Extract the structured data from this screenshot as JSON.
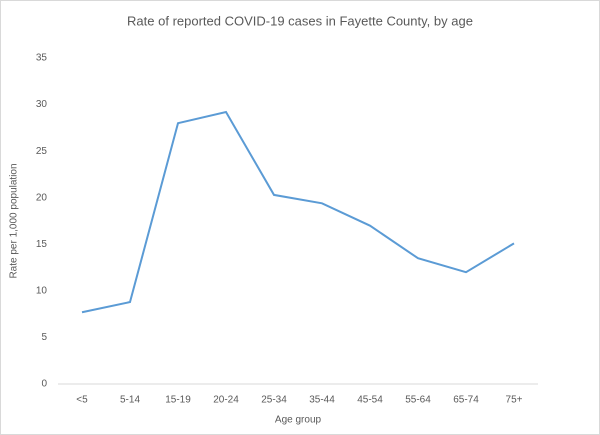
{
  "chart_data": {
    "type": "line",
    "title": "Rate of reported COVID-19 cases in Fayette County, by age",
    "x_label": "Age group",
    "y_label": "Rate per 1,000 population",
    "categories": [
      "<5",
      "5-14",
      "15-19",
      "20-24",
      "25-34",
      "35-44",
      "45-54",
      "55-64",
      "65-74",
      "75+"
    ],
    "values": [
      7.7,
      8.8,
      28.0,
      29.2,
      20.3,
      19.4,
      17.0,
      13.5,
      12.0,
      15.1
    ],
    "color": "#5b9bd5",
    "ylim": [
      0,
      35
    ],
    "yticks": [
      0,
      5,
      10,
      15,
      20,
      25,
      30,
      35
    ],
    "grid": false
  }
}
